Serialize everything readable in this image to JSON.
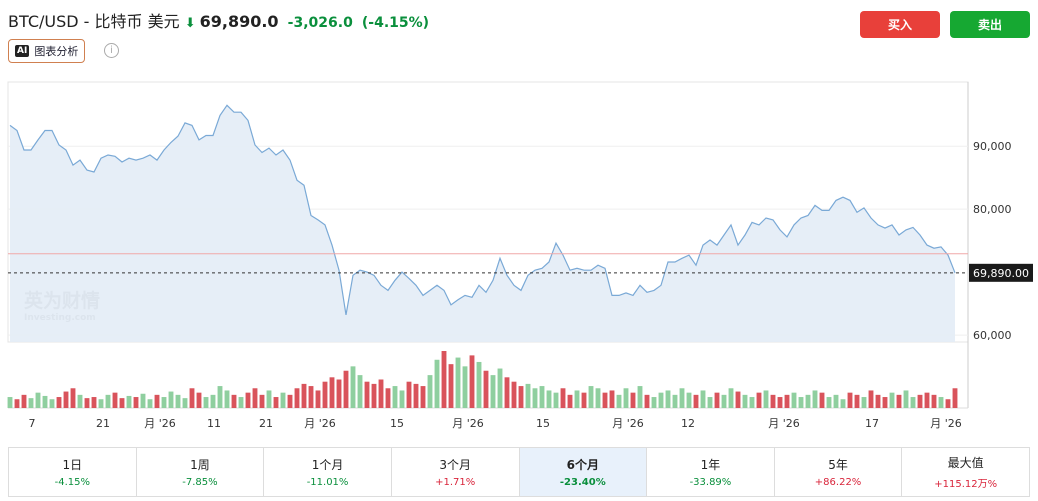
{
  "header": {
    "title": "BTC/USD - 比特币 美元",
    "price": "69,890.0",
    "change": "-3,026.0",
    "change_pct": "(-4.15%)",
    "buy": "买入",
    "sell": "卖出",
    "ai_icon": "AI",
    "ai_label": "图表分析",
    "info": "i"
  },
  "chart_data": {
    "type": "area",
    "color": "#7aa9d6",
    "watermark": "英为财情",
    "watermark_sub": "Investing.com",
    "ylim": [
      58900,
      100200
    ],
    "yticks": [
      {
        "value": 60000,
        "label": "60,000"
      },
      {
        "value": 80000,
        "label": "80,000"
      },
      {
        "value": 90000,
        "label": "90,000"
      }
    ],
    "last_label": {
      "value": 69890,
      "label": "69,890.00"
    },
    "ref_line": 72916,
    "xtick_labels": [
      "7",
      "21",
      "月 '26",
      "11",
      "21",
      "月 '26",
      "15",
      "月 '26",
      "15",
      "月 '26",
      "12",
      "月 '26",
      "17",
      "月 '26"
    ],
    "values": [
      93300,
      92500,
      89400,
      89400,
      91000,
      92500,
      92500,
      90200,
      89400,
      87000,
      87800,
      86200,
      85900,
      88100,
      88600,
      88400,
      87500,
      88100,
      87800,
      88100,
      88600,
      87800,
      89400,
      90600,
      91600,
      93700,
      93300,
      91000,
      91700,
      91700,
      94900,
      96500,
      95400,
      95400,
      94100,
      90200,
      89000,
      89700,
      88600,
      89400,
      87800,
      84600,
      83800,
      79000,
      78300,
      77500,
      74300,
      70300,
      63200,
      69500,
      70300,
      70000,
      69500,
      67900,
      67100,
      68700,
      70000,
      69000,
      67900,
      66300,
      67100,
      67900,
      67100,
      64800,
      65600,
      66300,
      66000,
      67900,
      66800,
      68700,
      72200,
      69500,
      67900,
      67100,
      69500,
      70300,
      70600,
      71600,
      74600,
      72700,
      70300,
      70600,
      70300,
      70300,
      71100,
      70600,
      66300,
      66300,
      66700,
      66300,
      67900,
      66800,
      67100,
      67900,
      71600,
      71600,
      72200,
      72700,
      71100,
      74300,
      75100,
      74300,
      75900,
      77500,
      74300,
      75900,
      77900,
      77500,
      78600,
      78300,
      76700,
      75600,
      77500,
      78600,
      79000,
      80600,
      79800,
      79800,
      81400,
      81900,
      81400,
      79500,
      80200,
      78600,
      77500,
      77000,
      77500,
      75900,
      76700,
      77100,
      75900,
      74300,
      73800,
      74000,
      72700,
      69890
    ],
    "volume": [
      10,
      8,
      12,
      9,
      14,
      11,
      8,
      10,
      15,
      18,
      12,
      9,
      10,
      8,
      12,
      14,
      9,
      11,
      10,
      13,
      8,
      12,
      10,
      15,
      12,
      9,
      18,
      14,
      10,
      12,
      20,
      16,
      12,
      10,
      14,
      18,
      12,
      16,
      10,
      14,
      12,
      18,
      22,
      20,
      16,
      24,
      28,
      26,
      34,
      38,
      30,
      24,
      22,
      26,
      18,
      20,
      16,
      24,
      22,
      20,
      30,
      44,
      52,
      40,
      46,
      38,
      48,
      42,
      34,
      30,
      36,
      28,
      24,
      20,
      22,
      18,
      20,
      16,
      14,
      18,
      12,
      16,
      14,
      20,
      18,
      14,
      16,
      12,
      18,
      14,
      20,
      12,
      10,
      14,
      16,
      12,
      18,
      14,
      12,
      16,
      10,
      14,
      12,
      18,
      15,
      12,
      10,
      14,
      16,
      12,
      10,
      12,
      14,
      10,
      12,
      16,
      14,
      10,
      12,
      8,
      14,
      12,
      10,
      16,
      12,
      10,
      14,
      12,
      16,
      10,
      12,
      14,
      12,
      10,
      8,
      18
    ],
    "up_color": "#8fcf9f",
    "down_color": "#d9535b"
  },
  "periods": [
    {
      "label": "1日",
      "pct": "-4.15%"
    },
    {
      "label": "1周",
      "pct": "-7.85%"
    },
    {
      "label": "1个月",
      "pct": "-11.01%"
    },
    {
      "label": "3个月",
      "pct": "+1.71%"
    },
    {
      "label": "6个月",
      "pct": "-23.40%",
      "selected": true
    },
    {
      "label": "1年",
      "pct": "-33.89%"
    },
    {
      "label": "5年",
      "pct": "+86.22%"
    },
    {
      "label": "最大值",
      "pct": "+115.12万%"
    }
  ]
}
